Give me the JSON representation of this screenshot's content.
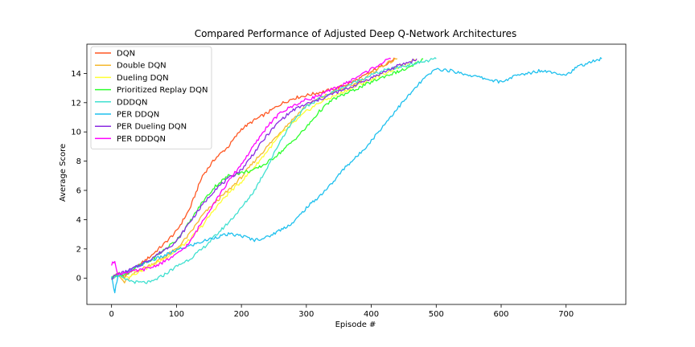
{
  "chart_data": {
    "type": "line",
    "title": "Compared Performance of Adjusted Deep Q-Network Architectures",
    "xlabel": "Episode #",
    "ylabel": "Average Score",
    "xlim": [
      -38,
      792
    ],
    "ylim": [
      -1.8,
      16.0
    ],
    "xticks": [
      0,
      100,
      200,
      300,
      400,
      500,
      600,
      700
    ],
    "yticks": [
      0,
      2,
      4,
      6,
      8,
      10,
      12,
      14
    ],
    "grid": false,
    "legend_position": "top-left",
    "series": [
      {
        "name": "DQN",
        "color": "#ff5722",
        "x": [
          0,
          10,
          20,
          40,
          60,
          80,
          100,
          120,
          140,
          160,
          180,
          200,
          220,
          240,
          260,
          280,
          300,
          320,
          340,
          360,
          380,
          400,
          420,
          437
        ],
        "y": [
          0,
          0.3,
          0.1,
          0.8,
          1.5,
          2.3,
          3.2,
          4.7,
          7.0,
          8.2,
          9.0,
          10.2,
          10.8,
          11.3,
          11.9,
          12.3,
          12.5,
          12.7,
          12.9,
          13.2,
          13.6,
          14.1,
          14.6,
          15.0
        ]
      },
      {
        "name": "Double DQN",
        "color": "#f5b82e",
        "x": [
          0,
          10,
          20,
          40,
          60,
          80,
          100,
          120,
          140,
          160,
          180,
          200,
          220,
          240,
          260,
          280,
          300,
          320,
          340,
          360,
          380,
          400,
          420,
          440
        ],
        "y": [
          0,
          0.2,
          -0.3,
          0.5,
          0.9,
          1.4,
          2.0,
          3.0,
          4.3,
          5.2,
          6.0,
          6.9,
          8.0,
          9.0,
          10.0,
          10.9,
          11.8,
          12.3,
          12.7,
          13.0,
          13.4,
          14.0,
          14.6,
          15.0
        ]
      },
      {
        "name": "Dueling DQN",
        "color": "#ffff33",
        "x": [
          0,
          10,
          20,
          40,
          60,
          80,
          100,
          120,
          140,
          160,
          180,
          200,
          220,
          240,
          260,
          280,
          300,
          320,
          340,
          360,
          380,
          400,
          420,
          440,
          460,
          470
        ],
        "y": [
          0,
          0.3,
          0.0,
          0.4,
          0.8,
          1.3,
          1.9,
          2.6,
          3.6,
          4.8,
          5.8,
          6.6,
          7.6,
          8.7,
          9.8,
          10.6,
          11.4,
          12.0,
          12.4,
          12.8,
          13.2,
          13.6,
          14.0,
          14.4,
          14.7,
          15.0
        ]
      },
      {
        "name": "Prioritized Replay DQN",
        "color": "#2dff2d",
        "x": [
          0,
          10,
          20,
          40,
          60,
          80,
          100,
          120,
          140,
          160,
          180,
          200,
          220,
          240,
          260,
          280,
          300,
          320,
          340,
          360,
          380,
          400,
          420,
          440,
          460,
          480
        ],
        "y": [
          0,
          0.3,
          0.2,
          0.8,
          1.2,
          1.9,
          2.6,
          3.8,
          5.2,
          6.3,
          7.0,
          7.2,
          7.4,
          7.9,
          8.6,
          9.4,
          10.3,
          11.4,
          12.2,
          12.6,
          13.0,
          13.4,
          13.8,
          14.1,
          14.4,
          15.0
        ]
      },
      {
        "name": "DDDQN",
        "color": "#40e0d0",
        "x": [
          0,
          10,
          20,
          40,
          60,
          80,
          100,
          120,
          140,
          160,
          180,
          200,
          220,
          240,
          260,
          280,
          300,
          320,
          340,
          360,
          380,
          400,
          420,
          440,
          460,
          480,
          500
        ],
        "y": [
          0,
          0.2,
          -0.1,
          -0.3,
          -0.3,
          0.2,
          0.8,
          1.3,
          2.0,
          2.9,
          3.8,
          4.8,
          6.0,
          7.6,
          9.4,
          10.8,
          11.7,
          12.3,
          12.7,
          13.1,
          13.5,
          13.9,
          14.2,
          14.4,
          14.6,
          14.8,
          15.0
        ]
      },
      {
        "name": "PER DDQN",
        "color": "#1ec0ee",
        "x": [
          0,
          5,
          10,
          20,
          40,
          60,
          80,
          100,
          120,
          140,
          160,
          180,
          200,
          220,
          240,
          260,
          280,
          300,
          320,
          340,
          360,
          380,
          400,
          420,
          440,
          460,
          480,
          500,
          520,
          540,
          560,
          580,
          600,
          620,
          640,
          660,
          680,
          700,
          720,
          740,
          755
        ],
        "y": [
          0,
          -0.9,
          0.2,
          0.3,
          0.8,
          1.2,
          1.5,
          1.9,
          2.2,
          2.5,
          2.8,
          3.0,
          2.9,
          2.6,
          2.8,
          3.3,
          3.8,
          4.8,
          5.6,
          6.5,
          7.6,
          8.4,
          9.4,
          10.5,
          11.6,
          12.6,
          13.6,
          14.3,
          14.2,
          14.0,
          13.8,
          13.6,
          13.4,
          13.8,
          14.0,
          14.2,
          14.1,
          13.9,
          14.5,
          14.8,
          15.0
        ]
      },
      {
        "name": "PER Dueling DQN",
        "color": "#8a2be2",
        "x": [
          0,
          10,
          20,
          40,
          60,
          80,
          100,
          120,
          140,
          160,
          180,
          200,
          220,
          240,
          260,
          280,
          300,
          320,
          340,
          360,
          380,
          400,
          420,
          440,
          460,
          470
        ],
        "y": [
          0,
          0.3,
          0.4,
          0.8,
          1.3,
          1.9,
          2.5,
          3.8,
          5.0,
          6.1,
          6.8,
          7.4,
          8.6,
          9.8,
          10.8,
          11.5,
          11.9,
          12.2,
          12.6,
          12.9,
          13.3,
          13.7,
          14.1,
          14.5,
          14.8,
          15.0
        ]
      },
      {
        "name": "PER DDDQN",
        "color": "#ff00ff",
        "x": [
          0,
          5,
          10,
          20,
          40,
          60,
          80,
          100,
          120,
          140,
          160,
          180,
          200,
          220,
          240,
          260,
          280,
          300,
          320,
          340,
          360,
          380,
          400,
          420,
          430
        ],
        "y": [
          0.9,
          1.2,
          0.2,
          0.4,
          0.5,
          0.7,
          1.1,
          1.6,
          2.4,
          3.9,
          5.3,
          6.6,
          7.8,
          9.1,
          10.4,
          11.3,
          11.8,
          12.2,
          12.5,
          12.9,
          13.3,
          13.8,
          14.3,
          14.8,
          15.0
        ]
      }
    ]
  }
}
